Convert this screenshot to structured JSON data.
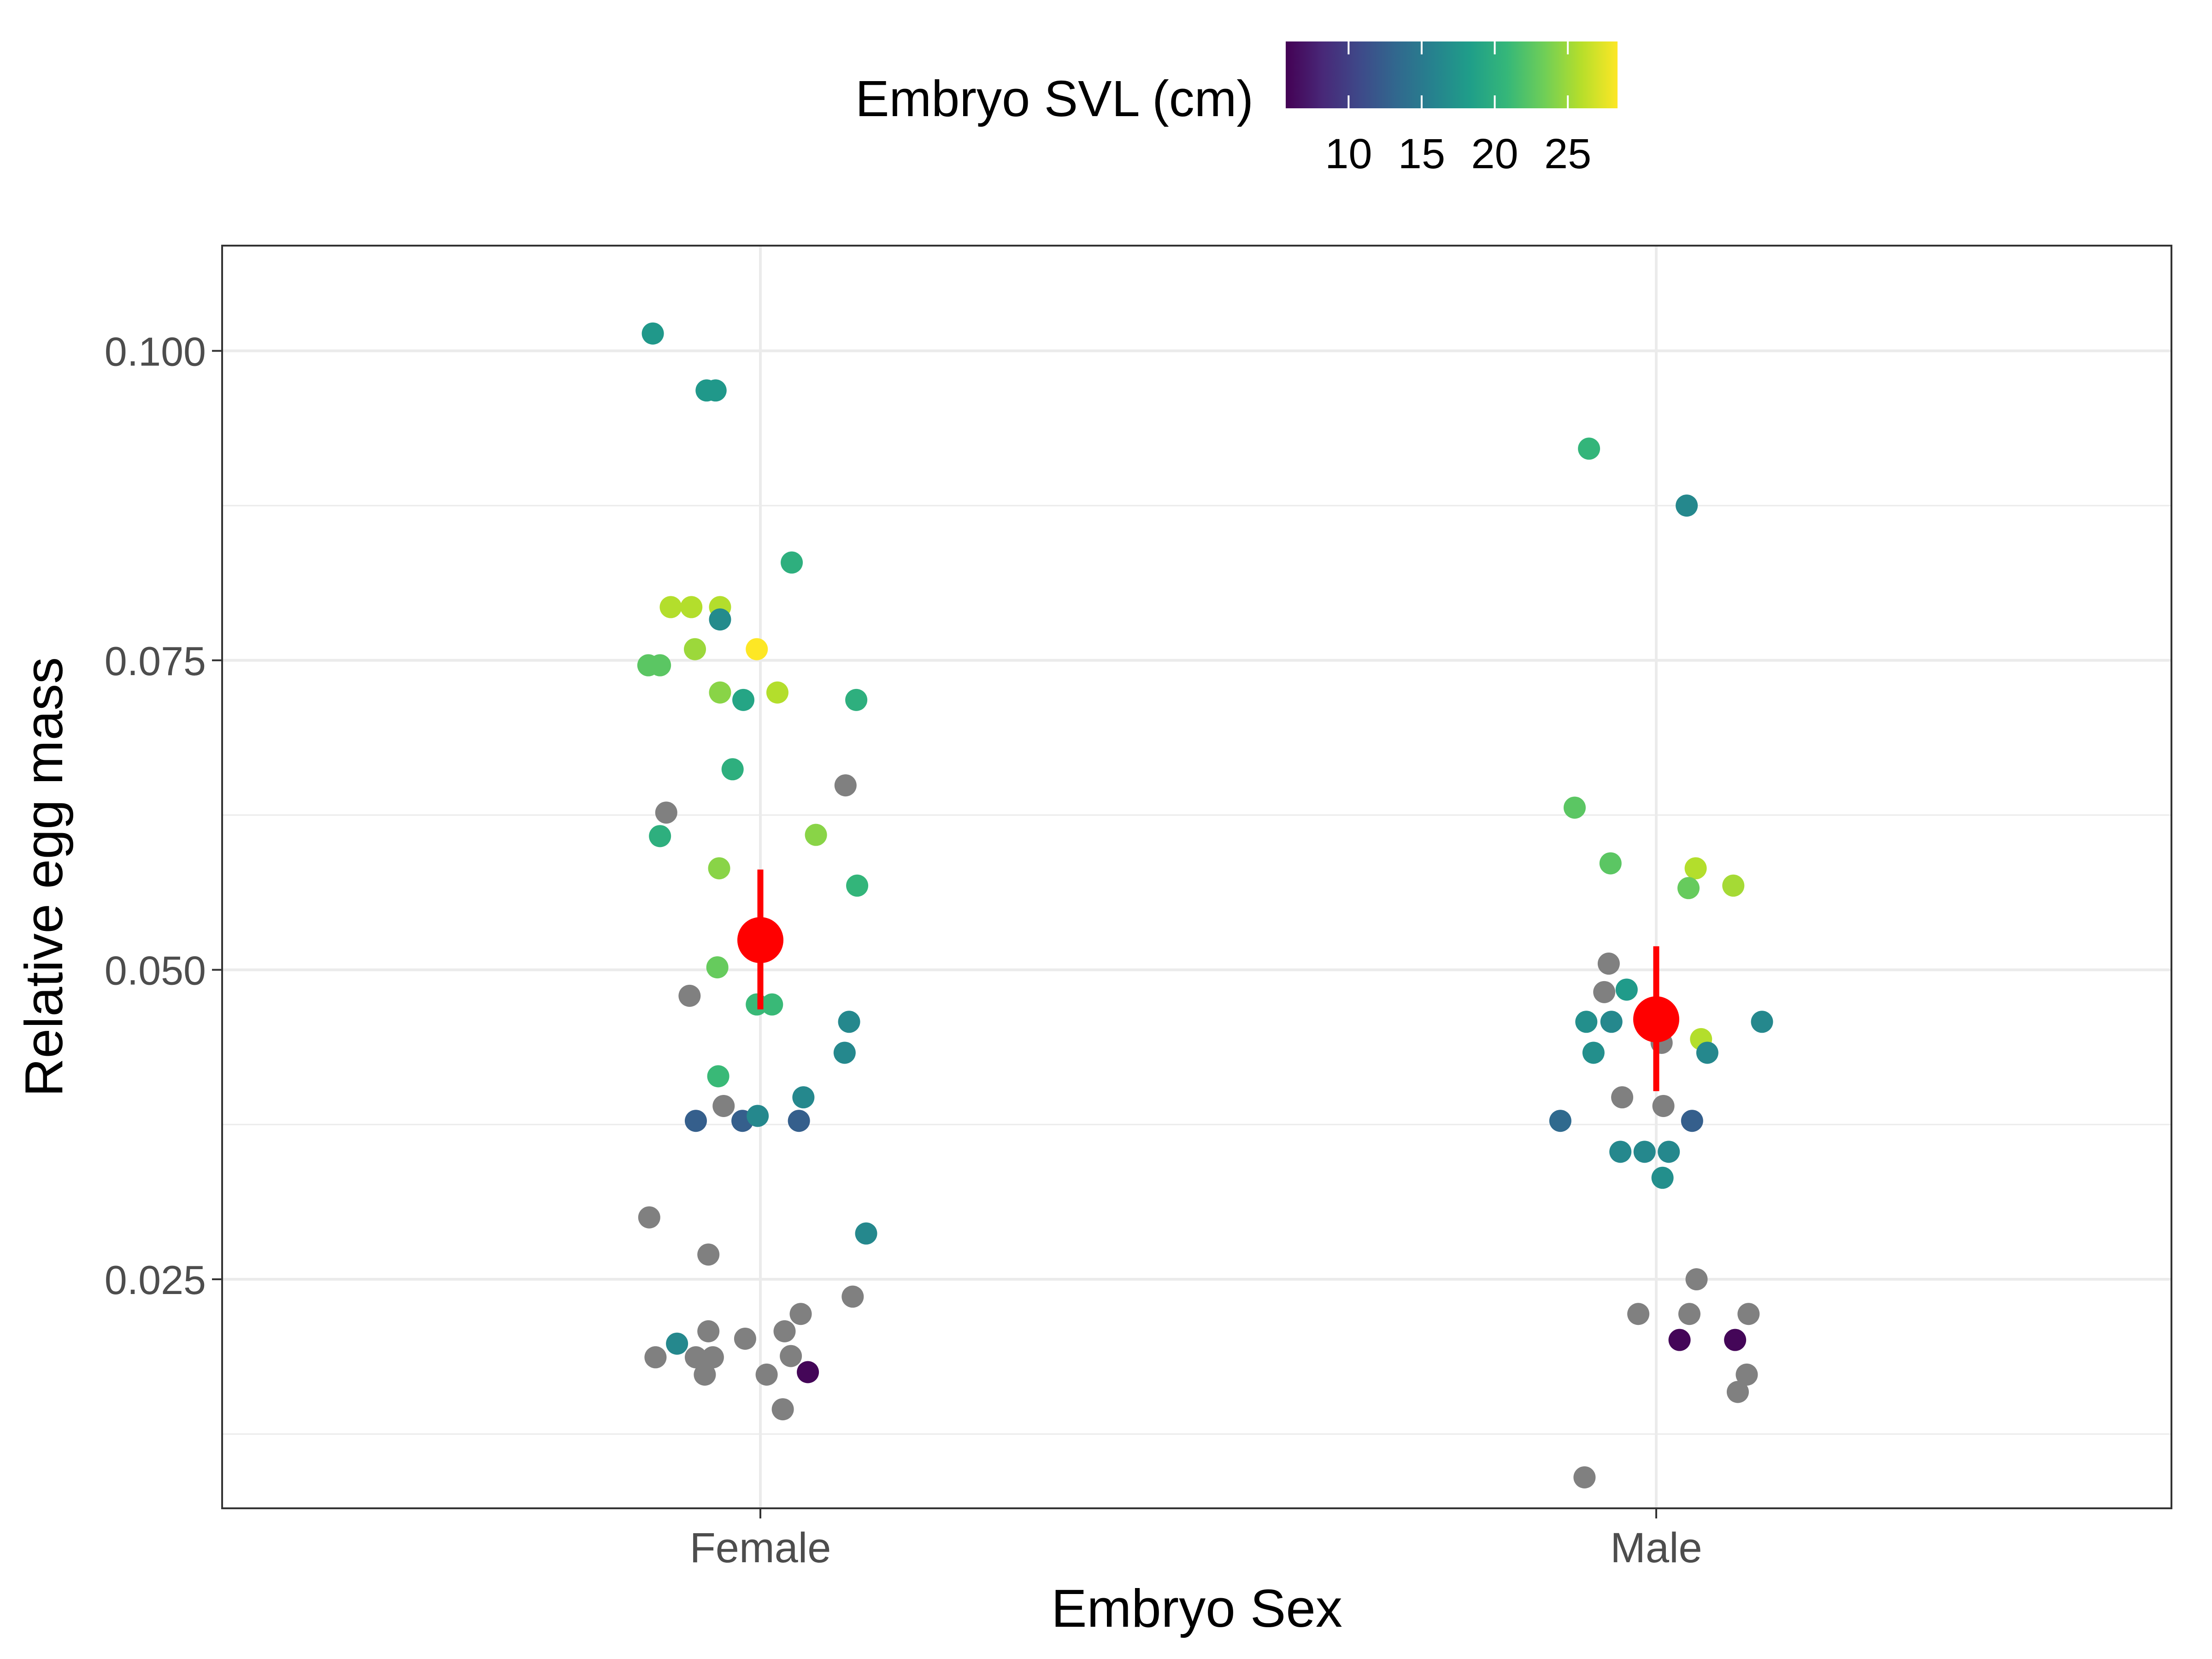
{
  "chart_data": {
    "type": "scatter",
    "xlabel": "Embryo Sex",
    "ylabel": "Relative egg mass",
    "categories": [
      "Female",
      "Male"
    ],
    "ylim": [
      0.0065,
      0.1085
    ],
    "yticks": [
      0.025,
      0.05,
      0.075,
      0.1
    ],
    "ytick_labels": [
      "0.025",
      "0.050",
      "0.075",
      "0.100"
    ],
    "grid": true,
    "legend": {
      "title": "Embryo SVL (cm)",
      "position": "top",
      "type": "colorbar",
      "range": [
        5.7,
        28.4
      ],
      "ticks": [
        10,
        15,
        20,
        25
      ],
      "tick_labels": [
        "10",
        "15",
        "20",
        "25"
      ],
      "na_color": "#808080"
    },
    "points": [
      {
        "sex": "Female",
        "x": -0.12,
        "y": 0.1014,
        "svl": 17.8
      },
      {
        "sex": "Female",
        "x": -0.06,
        "y": 0.0968,
        "svl": 17.8
      },
      {
        "sex": "Female",
        "x": -0.05,
        "y": 0.0968,
        "svl": 17.8
      },
      {
        "sex": "Female",
        "x": 0.035,
        "y": 0.0829,
        "svl": 20.0
      },
      {
        "sex": "Female",
        "x": -0.1,
        "y": 0.0793,
        "svl": 25.8
      },
      {
        "sex": "Female",
        "x": -0.077,
        "y": 0.0793,
        "svl": 25.8
      },
      {
        "sex": "Female",
        "x": -0.045,
        "y": 0.0793,
        "svl": 25.8
      },
      {
        "sex": "Female",
        "x": -0.045,
        "y": 0.0783,
        "svl": 16.6
      },
      {
        "sex": "Female",
        "x": -0.073,
        "y": 0.0759,
        "svl": 25.0
      },
      {
        "sex": "Female",
        "x": -0.004,
        "y": 0.0759,
        "svl": 28.4
      },
      {
        "sex": "Female",
        "x": -0.125,
        "y": 0.0746,
        "svl": 22.5
      },
      {
        "sex": "Female",
        "x": -0.112,
        "y": 0.0746,
        "svl": 22.5
      },
      {
        "sex": "Female",
        "x": -0.045,
        "y": 0.0724,
        "svl": 24.3
      },
      {
        "sex": "Female",
        "x": -0.019,
        "y": 0.0718,
        "svl": 19.0
      },
      {
        "sex": "Female",
        "x": 0.019,
        "y": 0.0724,
        "svl": 25.8
      },
      {
        "sex": "Female",
        "x": 0.107,
        "y": 0.0718,
        "svl": 20.0
      },
      {
        "sex": "Female",
        "x": -0.031,
        "y": 0.0662,
        "svl": 20.0
      },
      {
        "sex": "Female",
        "x": 0.095,
        "y": 0.0649,
        "svl": null
      },
      {
        "sex": "Female",
        "x": -0.105,
        "y": 0.0627,
        "svl": null
      },
      {
        "sex": "Female",
        "x": -0.112,
        "y": 0.0608,
        "svl": 20.0
      },
      {
        "sex": "Female",
        "x": 0.062,
        "y": 0.0609,
        "svl": 24.3
      },
      {
        "sex": "Female",
        "x": -0.046,
        "y": 0.0582,
        "svl": 24.3
      },
      {
        "sex": "Female",
        "x": 0.108,
        "y": 0.0568,
        "svl": 20.6
      },
      {
        "sex": "Female",
        "x": -0.048,
        "y": 0.0502,
        "svl": 23.0
      },
      {
        "sex": "Female",
        "x": -0.079,
        "y": 0.0479,
        "svl": null
      },
      {
        "sex": "Female",
        "x": -0.004,
        "y": 0.0472,
        "svl": 21.0
      },
      {
        "sex": "Female",
        "x": 0.013,
        "y": 0.0472,
        "svl": 21.0
      },
      {
        "sex": "Female",
        "x": 0.099,
        "y": 0.0458,
        "svl": 16.3
      },
      {
        "sex": "Female",
        "x": 0.094,
        "y": 0.0433,
        "svl": 16.3
      },
      {
        "sex": "Female",
        "x": -0.047,
        "y": 0.0414,
        "svl": 21.0
      },
      {
        "sex": "Female",
        "x": 0.048,
        "y": 0.0397,
        "svl": 16.3
      },
      {
        "sex": "Female",
        "x": -0.041,
        "y": 0.039,
        "svl": null
      },
      {
        "sex": "Female",
        "x": -0.072,
        "y": 0.0378,
        "svl": 12.5
      },
      {
        "sex": "Female",
        "x": -0.02,
        "y": 0.0378,
        "svl": 12.5
      },
      {
        "sex": "Female",
        "x": -0.003,
        "y": 0.0382,
        "svl": 16.3
      },
      {
        "sex": "Female",
        "x": 0.043,
        "y": 0.0378,
        "svl": 12.5
      },
      {
        "sex": "Female",
        "x": -0.124,
        "y": 0.03,
        "svl": null
      },
      {
        "sex": "Female",
        "x": 0.118,
        "y": 0.0287,
        "svl": 16.3
      },
      {
        "sex": "Female",
        "x": -0.058,
        "y": 0.027,
        "svl": null
      },
      {
        "sex": "Female",
        "x": 0.103,
        "y": 0.0236,
        "svl": null
      },
      {
        "sex": "Female",
        "x": 0.045,
        "y": 0.0222,
        "svl": null
      },
      {
        "sex": "Female",
        "x": -0.058,
        "y": 0.0208,
        "svl": null
      },
      {
        "sex": "Female",
        "x": 0.027,
        "y": 0.0208,
        "svl": null
      },
      {
        "sex": "Female",
        "x": -0.017,
        "y": 0.0202,
        "svl": null
      },
      {
        "sex": "Female",
        "x": -0.093,
        "y": 0.0198,
        "svl": 16.3
      },
      {
        "sex": "Female",
        "x": -0.117,
        "y": 0.0187,
        "svl": null
      },
      {
        "sex": "Female",
        "x": -0.072,
        "y": 0.0187,
        "svl": null
      },
      {
        "sex": "Female",
        "x": -0.053,
        "y": 0.0187,
        "svl": null
      },
      {
        "sex": "Female",
        "x": 0.034,
        "y": 0.0188,
        "svl": null
      },
      {
        "sex": "Female",
        "x": -0.062,
        "y": 0.0173,
        "svl": null
      },
      {
        "sex": "Female",
        "x": 0.007,
        "y": 0.0173,
        "svl": null
      },
      {
        "sex": "Female",
        "x": 0.053,
        "y": 0.0175,
        "svl": 6.0
      },
      {
        "sex": "Female",
        "x": 0.025,
        "y": 0.0145,
        "svl": null
      },
      {
        "sex": "Male",
        "x": -0.075,
        "y": 0.0921,
        "svl": 20.6
      },
      {
        "sex": "Male",
        "x": 0.034,
        "y": 0.0875,
        "svl": 16.3
      },
      {
        "sex": "Male",
        "x": -0.091,
        "y": 0.0631,
        "svl": 22.5
      },
      {
        "sex": "Male",
        "x": -0.051,
        "y": 0.0586,
        "svl": 22.5
      },
      {
        "sex": "Male",
        "x": 0.044,
        "y": 0.0582,
        "svl": 25.8
      },
      {
        "sex": "Male",
        "x": 0.036,
        "y": 0.0566,
        "svl": 23.0
      },
      {
        "sex": "Male",
        "x": 0.086,
        "y": 0.0568,
        "svl": 25.3
      },
      {
        "sex": "Male",
        "x": -0.053,
        "y": 0.0505,
        "svl": null
      },
      {
        "sex": "Male",
        "x": -0.058,
        "y": 0.0482,
        "svl": null
      },
      {
        "sex": "Male",
        "x": -0.033,
        "y": 0.0484,
        "svl": 18.0
      },
      {
        "sex": "Male",
        "x": -0.078,
        "y": 0.0458,
        "svl": 17.0
      },
      {
        "sex": "Male",
        "x": -0.05,
        "y": 0.0458,
        "svl": 16.3
      },
      {
        "sex": "Male",
        "x": 0.118,
        "y": 0.0458,
        "svl": 16.3
      },
      {
        "sex": "Male",
        "x": 0.05,
        "y": 0.0444,
        "svl": 25.8
      },
      {
        "sex": "Male",
        "x": 0.006,
        "y": 0.0441,
        "svl": null
      },
      {
        "sex": "Male",
        "x": -0.07,
        "y": 0.0433,
        "svl": 17.0
      },
      {
        "sex": "Male",
        "x": 0.057,
        "y": 0.0433,
        "svl": 16.3
      },
      {
        "sex": "Male",
        "x": -0.038,
        "y": 0.0397,
        "svl": null
      },
      {
        "sex": "Male",
        "x": 0.008,
        "y": 0.039,
        "svl": null
      },
      {
        "sex": "Male",
        "x": -0.107,
        "y": 0.0378,
        "svl": 13.5
      },
      {
        "sex": "Male",
        "x": 0.04,
        "y": 0.0378,
        "svl": 12.5
      },
      {
        "sex": "Male",
        "x": -0.04,
        "y": 0.0353,
        "svl": 16.3
      },
      {
        "sex": "Male",
        "x": -0.013,
        "y": 0.0353,
        "svl": 16.3
      },
      {
        "sex": "Male",
        "x": 0.014,
        "y": 0.0353,
        "svl": 16.3
      },
      {
        "sex": "Male",
        "x": 0.007,
        "y": 0.0332,
        "svl": 17.0
      },
      {
        "sex": "Male",
        "x": 0.045,
        "y": 0.025,
        "svl": null
      },
      {
        "sex": "Male",
        "x": -0.02,
        "y": 0.0222,
        "svl": null
      },
      {
        "sex": "Male",
        "x": 0.037,
        "y": 0.0222,
        "svl": null
      },
      {
        "sex": "Male",
        "x": 0.103,
        "y": 0.0222,
        "svl": null
      },
      {
        "sex": "Male",
        "x": 0.026,
        "y": 0.0201,
        "svl": 6.0
      },
      {
        "sex": "Male",
        "x": 0.088,
        "y": 0.0201,
        "svl": 6.0
      },
      {
        "sex": "Male",
        "x": 0.101,
        "y": 0.0173,
        "svl": null
      },
      {
        "sex": "Male",
        "x": 0.091,
        "y": 0.0159,
        "svl": null
      },
      {
        "sex": "Male",
        "x": -0.08,
        "y": 0.009,
        "svl": null
      }
    ],
    "summary": [
      {
        "sex": "Female",
        "mean": 0.0524,
        "lower": 0.0468,
        "upper": 0.0581,
        "color": "#ff0000"
      },
      {
        "sex": "Male",
        "mean": 0.046,
        "lower": 0.0402,
        "upper": 0.0519,
        "color": "#ff0000"
      }
    ],
    "viridis_stops": [
      "#440154",
      "#482878",
      "#3e4989",
      "#31688e",
      "#26828e",
      "#1f9e89",
      "#35b779",
      "#6ece58",
      "#b5de2b",
      "#fde725"
    ]
  }
}
